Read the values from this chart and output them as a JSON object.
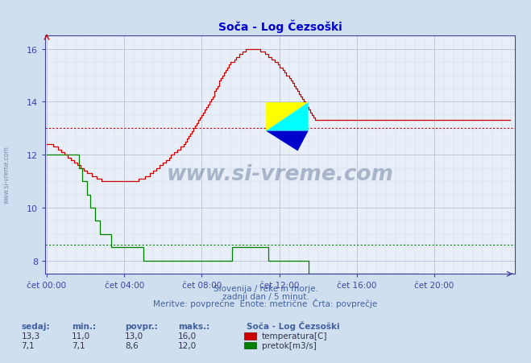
{
  "title": "Soča - Log Čezsoški",
  "bg_color": "#d0dff0",
  "plot_bg_color": "#e8eff8",
  "grid_major_color": "#b0b8d0",
  "grid_minor_color": "#d0d8e8",
  "title_color": "#0000cc",
  "axis_color": "#4040a0",
  "text_color": "#4060a0",
  "temp_color": "#cc0000",
  "flow_color": "#008000",
  "temp_avg": 13.0,
  "flow_avg": 8.6,
  "ylim_bottom": 7.5,
  "ylim_top": 16.5,
  "yticks": [
    8,
    10,
    12,
    14,
    16
  ],
  "n_points": 288,
  "xtick_labels": [
    "čet 00:00",
    "čet 04:00",
    "čet 08:00",
    "čet 12:00",
    "čet 16:00",
    "čet 20:00"
  ],
  "xtick_positions": [
    0,
    48,
    96,
    144,
    192,
    240
  ],
  "subtitle1": "Slovenija / reke in morje.",
  "subtitle2": "zadnji dan / 5 minut.",
  "subtitle3": "Meritve: povprečne  Enote: metrične  Črta: povprečje",
  "legend_title": "Soča - Log Čezsoški",
  "legend_temp": "temperatura[C]",
  "legend_flow": "pretok[m3/s]",
  "stat_headers": [
    "sedaj:",
    "min.:",
    "povpr.:",
    "maks.:"
  ],
  "stat_temp": [
    "13,3",
    "11,0",
    "13,0",
    "16,0"
  ],
  "stat_flow": [
    "7,1",
    "7,1",
    "8,6",
    "12,0"
  ],
  "temp_data": [
    12.4,
    12.4,
    12.4,
    12.4,
    12.3,
    12.3,
    12.3,
    12.2,
    12.2,
    12.1,
    12.1,
    12.0,
    12.0,
    11.9,
    11.9,
    11.8,
    11.8,
    11.7,
    11.7,
    11.6,
    11.6,
    11.5,
    11.5,
    11.4,
    11.4,
    11.3,
    11.3,
    11.3,
    11.2,
    11.2,
    11.2,
    11.1,
    11.1,
    11.1,
    11.0,
    11.0,
    11.0,
    11.0,
    11.0,
    11.0,
    11.0,
    11.0,
    11.0,
    11.0,
    11.0,
    11.0,
    11.0,
    11.0,
    11.0,
    11.0,
    11.0,
    11.0,
    11.0,
    11.0,
    11.0,
    11.0,
    11.0,
    11.1,
    11.1,
    11.1,
    11.1,
    11.2,
    11.2,
    11.2,
    11.3,
    11.3,
    11.4,
    11.4,
    11.5,
    11.5,
    11.6,
    11.6,
    11.7,
    11.7,
    11.8,
    11.8,
    11.9,
    12.0,
    12.0,
    12.1,
    12.1,
    12.2,
    12.2,
    12.3,
    12.3,
    12.4,
    12.5,
    12.6,
    12.7,
    12.8,
    12.9,
    13.0,
    13.1,
    13.2,
    13.3,
    13.4,
    13.5,
    13.6,
    13.7,
    13.8,
    13.9,
    14.0,
    14.1,
    14.2,
    14.4,
    14.5,
    14.6,
    14.8,
    14.9,
    15.0,
    15.1,
    15.2,
    15.3,
    15.4,
    15.5,
    15.5,
    15.6,
    15.7,
    15.7,
    15.8,
    15.8,
    15.9,
    15.9,
    16.0,
    16.0,
    16.0,
    16.0,
    16.0,
    16.0,
    16.0,
    16.0,
    16.0,
    15.9,
    15.9,
    15.9,
    15.8,
    15.8,
    15.7,
    15.7,
    15.6,
    15.6,
    15.5,
    15.5,
    15.4,
    15.3,
    15.3,
    15.2,
    15.1,
    15.0,
    15.0,
    14.9,
    14.8,
    14.7,
    14.6,
    14.5,
    14.4,
    14.3,
    14.2,
    14.1,
    14.0,
    13.9,
    13.8,
    13.7,
    13.6,
    13.5,
    13.4,
    13.3,
    13.3,
    13.3,
    13.3,
    13.3,
    13.3,
    13.3,
    13.3,
    13.3,
    13.3,
    13.3,
    13.3,
    13.3,
    13.3,
    13.3,
    13.3,
    13.3,
    13.3,
    13.3,
    13.3,
    13.3,
    13.3,
    13.3,
    13.3,
    13.3,
    13.3,
    13.3,
    13.3,
    13.3,
    13.3,
    13.3,
    13.3,
    13.3,
    13.3,
    13.3,
    13.3,
    13.3,
    13.3,
    13.3,
    13.3,
    13.3,
    13.3,
    13.3,
    13.3,
    13.3,
    13.3,
    13.3,
    13.3,
    13.3,
    13.3,
    13.3,
    13.3,
    13.3,
    13.3,
    13.3,
    13.3,
    13.3,
    13.3,
    13.3,
    13.3,
    13.3,
    13.3,
    13.3,
    13.3,
    13.3,
    13.3,
    13.3,
    13.3,
    13.3,
    13.3,
    13.3,
    13.3,
    13.3,
    13.3,
    13.3,
    13.3,
    13.3,
    13.3,
    13.3,
    13.3,
    13.3,
    13.3,
    13.3,
    13.3,
    13.3,
    13.3,
    13.3,
    13.3,
    13.3,
    13.3,
    13.3,
    13.3,
    13.3,
    13.3,
    13.3,
    13.3,
    13.3,
    13.3,
    13.3,
    13.3,
    13.3,
    13.3,
    13.3,
    13.3,
    13.3,
    13.3,
    13.3,
    13.3,
    13.3,
    13.3,
    13.3,
    13.3,
    13.3,
    13.3,
    13.3,
    13.3,
    13.3,
    13.3,
    13.3,
    13.3,
    13.3,
    13.3
  ],
  "flow_data": [
    12.0,
    12.0,
    12.0,
    12.0,
    12.0,
    12.0,
    12.0,
    12.0,
    12.0,
    12.0,
    12.0,
    12.0,
    12.0,
    12.0,
    12.0,
    12.0,
    12.0,
    12.0,
    12.0,
    12.0,
    11.5,
    11.5,
    11.0,
    11.0,
    11.0,
    10.5,
    10.5,
    10.0,
    10.0,
    10.0,
    9.5,
    9.5,
    9.5,
    9.0,
    9.0,
    9.0,
    9.0,
    9.0,
    9.0,
    9.0,
    8.5,
    8.5,
    8.5,
    8.5,
    8.5,
    8.5,
    8.5,
    8.5,
    8.5,
    8.5,
    8.5,
    8.5,
    8.5,
    8.5,
    8.5,
    8.5,
    8.5,
    8.5,
    8.5,
    8.5,
    8.0,
    8.0,
    8.0,
    8.0,
    8.0,
    8.0,
    8.0,
    8.0,
    8.0,
    8.0,
    8.0,
    8.0,
    8.0,
    8.0,
    8.0,
    8.0,
    8.0,
    8.0,
    8.0,
    8.0,
    8.0,
    8.0,
    8.0,
    8.0,
    8.0,
    8.0,
    8.0,
    8.0,
    8.0,
    8.0,
    8.0,
    8.0,
    8.0,
    8.0,
    8.0,
    8.0,
    8.0,
    8.0,
    8.0,
    8.0,
    8.0,
    8.0,
    8.0,
    8.0,
    8.0,
    8.0,
    8.0,
    8.0,
    8.0,
    8.0,
    8.0,
    8.0,
    8.0,
    8.0,
    8.0,
    8.5,
    8.5,
    8.5,
    8.5,
    8.5,
    8.5,
    8.5,
    8.5,
    8.5,
    8.5,
    8.5,
    8.5,
    8.5,
    8.5,
    8.5,
    8.5,
    8.5,
    8.5,
    8.5,
    8.5,
    8.5,
    8.5,
    8.0,
    8.0,
    8.0,
    8.0,
    8.0,
    8.0,
    8.0,
    8.0,
    8.0,
    8.0,
    8.0,
    8.0,
    8.0,
    8.0,
    8.0,
    8.0,
    8.0,
    8.0,
    8.0,
    8.0,
    8.0,
    8.0,
    8.0,
    8.0,
    8.0,
    7.5,
    7.5,
    7.5,
    7.5,
    7.5,
    7.5,
    7.5,
    7.5,
    7.5,
    7.5,
    7.5,
    7.5,
    7.5,
    7.5,
    7.5,
    7.5,
    7.5,
    7.5,
    7.5,
    7.5,
    7.5,
    7.5,
    7.5,
    7.5,
    7.5,
    7.5,
    7.5,
    7.5,
    7.5,
    7.5,
    7.5,
    7.5,
    7.5,
    7.5,
    7.5,
    7.5,
    7.5,
    7.5,
    7.5,
    7.5,
    7.5,
    7.5,
    7.5,
    7.5,
    7.5,
    7.5,
    7.5,
    7.5,
    7.5,
    7.5,
    7.5,
    7.5,
    7.5,
    7.5,
    7.5,
    7.5,
    7.5,
    7.5,
    7.5,
    7.5,
    7.5,
    7.5,
    7.5,
    7.5,
    7.5,
    7.5,
    7.5,
    7.5,
    7.1,
    7.1,
    7.1,
    7.1,
    7.1,
    7.1,
    7.1,
    7.1,
    7.1,
    7.1,
    7.1,
    7.1,
    7.1,
    7.1,
    7.1,
    7.1,
    7.1,
    7.1,
    7.1,
    7.1,
    7.1,
    7.1,
    7.1,
    7.1,
    7.1,
    7.1,
    7.1,
    7.1,
    7.1,
    7.1,
    7.1,
    7.1,
    7.1,
    7.1,
    7.1,
    7.1,
    7.1,
    7.1,
    7.1,
    7.1,
    7.1,
    7.1,
    7.1,
    7.1,
    7.1,
    7.1,
    7.1,
    7.1,
    7.1,
    7.1,
    7.1,
    7.1,
    7.1,
    7.1,
    7.1,
    7.1,
    7.1,
    7.1
  ]
}
